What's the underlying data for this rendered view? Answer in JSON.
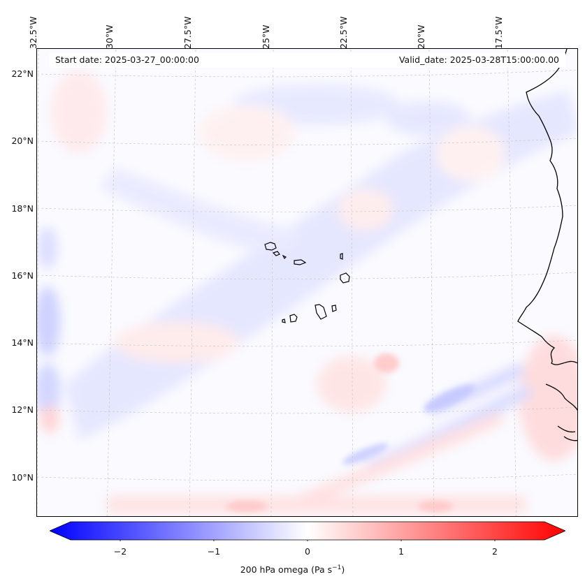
{
  "map": {
    "start_label": "Start date: 2025-03-27_00:00:00",
    "valid_label": "Valid_date: 2025-03-28T15:00:00.00",
    "lon_labels": [
      "32.5°W",
      "30°W",
      "27.5°W",
      "25°W",
      "22.5°W",
      "20°W",
      "17.5°W"
    ],
    "lat_labels": [
      "22°N",
      "20°N",
      "18°N",
      "16°N",
      "14°N",
      "12°N",
      "10°N"
    ],
    "variable": "200 hPa omega (Pa s",
    "variable_units_exp": "−1",
    "variable_units_close": ")"
  },
  "colorbar": {
    "ticks": [
      "−2",
      "−1",
      "0",
      "1",
      "2"
    ],
    "min_color": "#0000ff",
    "mid_color": "#ffffff",
    "max_color": "#ff0000",
    "range": [
      -2.7,
      2.7
    ]
  },
  "colors": {
    "coastline": "#000000",
    "gridline": "#c8c8c8"
  }
}
